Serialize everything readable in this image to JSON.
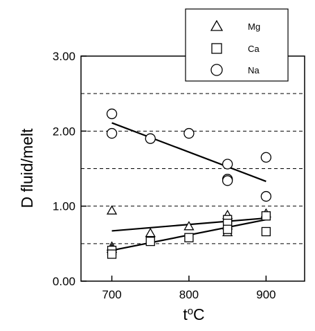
{
  "chart_data": {
    "type": "scatter",
    "xlabel": "t",
    "xlabel_sup": "o",
    "xlabel_unit": "C",
    "ylabel": "D fluid/melt",
    "xlim": [
      660,
      950
    ],
    "ylim": [
      0,
      3
    ],
    "x_ticks": [
      700,
      800,
      900
    ],
    "x_tick_labels": [
      "700",
      "800",
      "900"
    ],
    "y_ticks": [
      0,
      1,
      2,
      3
    ],
    "y_tick_labels": [
      "0.00",
      "1.00",
      "2.00",
      "3.00"
    ],
    "gridlines_y": [
      0.5,
      1.0,
      1.5,
      2.0,
      2.5
    ],
    "grid": "horizontal dashed",
    "legend_position": "top-right, above plot",
    "series": [
      {
        "name": "Mg",
        "marker": "triangle",
        "points": [
          {
            "x": 700,
            "y": 0.94
          },
          {
            "x": 700,
            "y": 0.46
          },
          {
            "x": 700,
            "y": 0.43
          },
          {
            "x": 750,
            "y": 0.64
          },
          {
            "x": 800,
            "y": 0.73
          },
          {
            "x": 850,
            "y": 0.88
          },
          {
            "x": 850,
            "y": 0.74
          },
          {
            "x": 850,
            "y": 0.65
          },
          {
            "x": 900,
            "y": 0.9
          }
        ],
        "trend": [
          [
            700,
            0.67
          ],
          [
            900,
            0.84
          ]
        ]
      },
      {
        "name": "Ca",
        "marker": "square",
        "points": [
          {
            "x": 700,
            "y": 0.41
          },
          {
            "x": 700,
            "y": 0.36
          },
          {
            "x": 750,
            "y": 0.53
          },
          {
            "x": 800,
            "y": 0.58
          },
          {
            "x": 850,
            "y": 0.82
          },
          {
            "x": 850,
            "y": 0.77
          },
          {
            "x": 850,
            "y": 0.69
          },
          {
            "x": 900,
            "y": 0.87
          },
          {
            "x": 900,
            "y": 0.66
          }
        ],
        "trend": [
          [
            700,
            0.41
          ],
          [
            900,
            0.82
          ]
        ]
      },
      {
        "name": "Na",
        "marker": "circle",
        "points": [
          {
            "x": 700,
            "y": 2.23
          },
          {
            "x": 700,
            "y": 1.97
          },
          {
            "x": 750,
            "y": 1.9
          },
          {
            "x": 800,
            "y": 1.97
          },
          {
            "x": 850,
            "y": 1.56
          },
          {
            "x": 850,
            "y": 1.36
          },
          {
            "x": 850,
            "y": 1.34
          },
          {
            "x": 900,
            "y": 1.65
          },
          {
            "x": 900,
            "y": 1.13
          }
        ],
        "trend": [
          [
            700,
            2.11
          ],
          [
            900,
            1.33
          ]
        ]
      }
    ]
  }
}
